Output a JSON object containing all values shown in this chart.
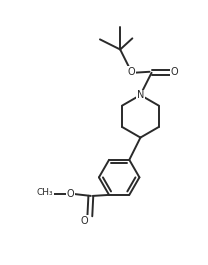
{
  "background_color": "#ffffff",
  "line_color": "#2a2a2a",
  "line_width": 1.4,
  "font_size": 7.0,
  "figsize": [
    2.08,
    2.65
  ],
  "dpi": 100,
  "xlim": [
    0,
    10
  ],
  "ylim": [
    0,
    12.7
  ]
}
